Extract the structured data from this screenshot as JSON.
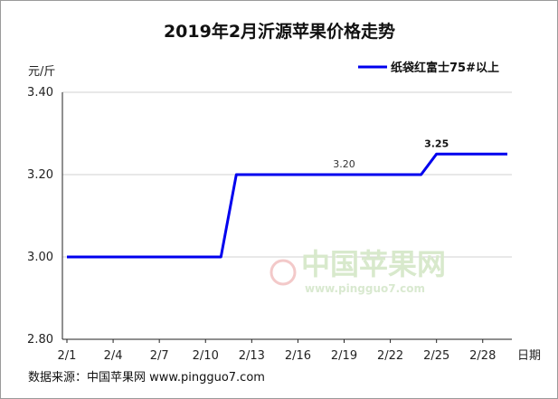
{
  "chart_data": {
    "type": "line",
    "title": "2019年2月沂源苹果价格走势",
    "ylabel": "元/斤",
    "xlabel": "日期",
    "ylim": [
      2.8,
      3.4
    ],
    "yticks": [
      "3.40",
      "3.20",
      "3.00",
      "2.80"
    ],
    "categories": [
      "2/1",
      "2/4",
      "2/7",
      "2/10",
      "2/13",
      "2/16",
      "2/19",
      "2/22",
      "2/25",
      "2/28"
    ],
    "x": [
      1,
      11,
      12,
      24,
      25,
      29
    ],
    "series": [
      {
        "name": "纸袋红富士75#以上",
        "color": "#0000ee",
        "values": [
          3.0,
          3.0,
          3.2,
          3.2,
          3.25,
          3.25
        ]
      }
    ],
    "annotations": [
      {
        "x": 19,
        "y": 3.2,
        "text": "3.20"
      },
      {
        "x": 25,
        "y": 3.25,
        "text": "3.25"
      }
    ],
    "grid": true,
    "legend_position": "top-right"
  },
  "source": "数据来源：中国苹果网 www.pingguo7.com",
  "watermark": {
    "text": "中国苹果网",
    "url": "www.pingguo7.com"
  }
}
